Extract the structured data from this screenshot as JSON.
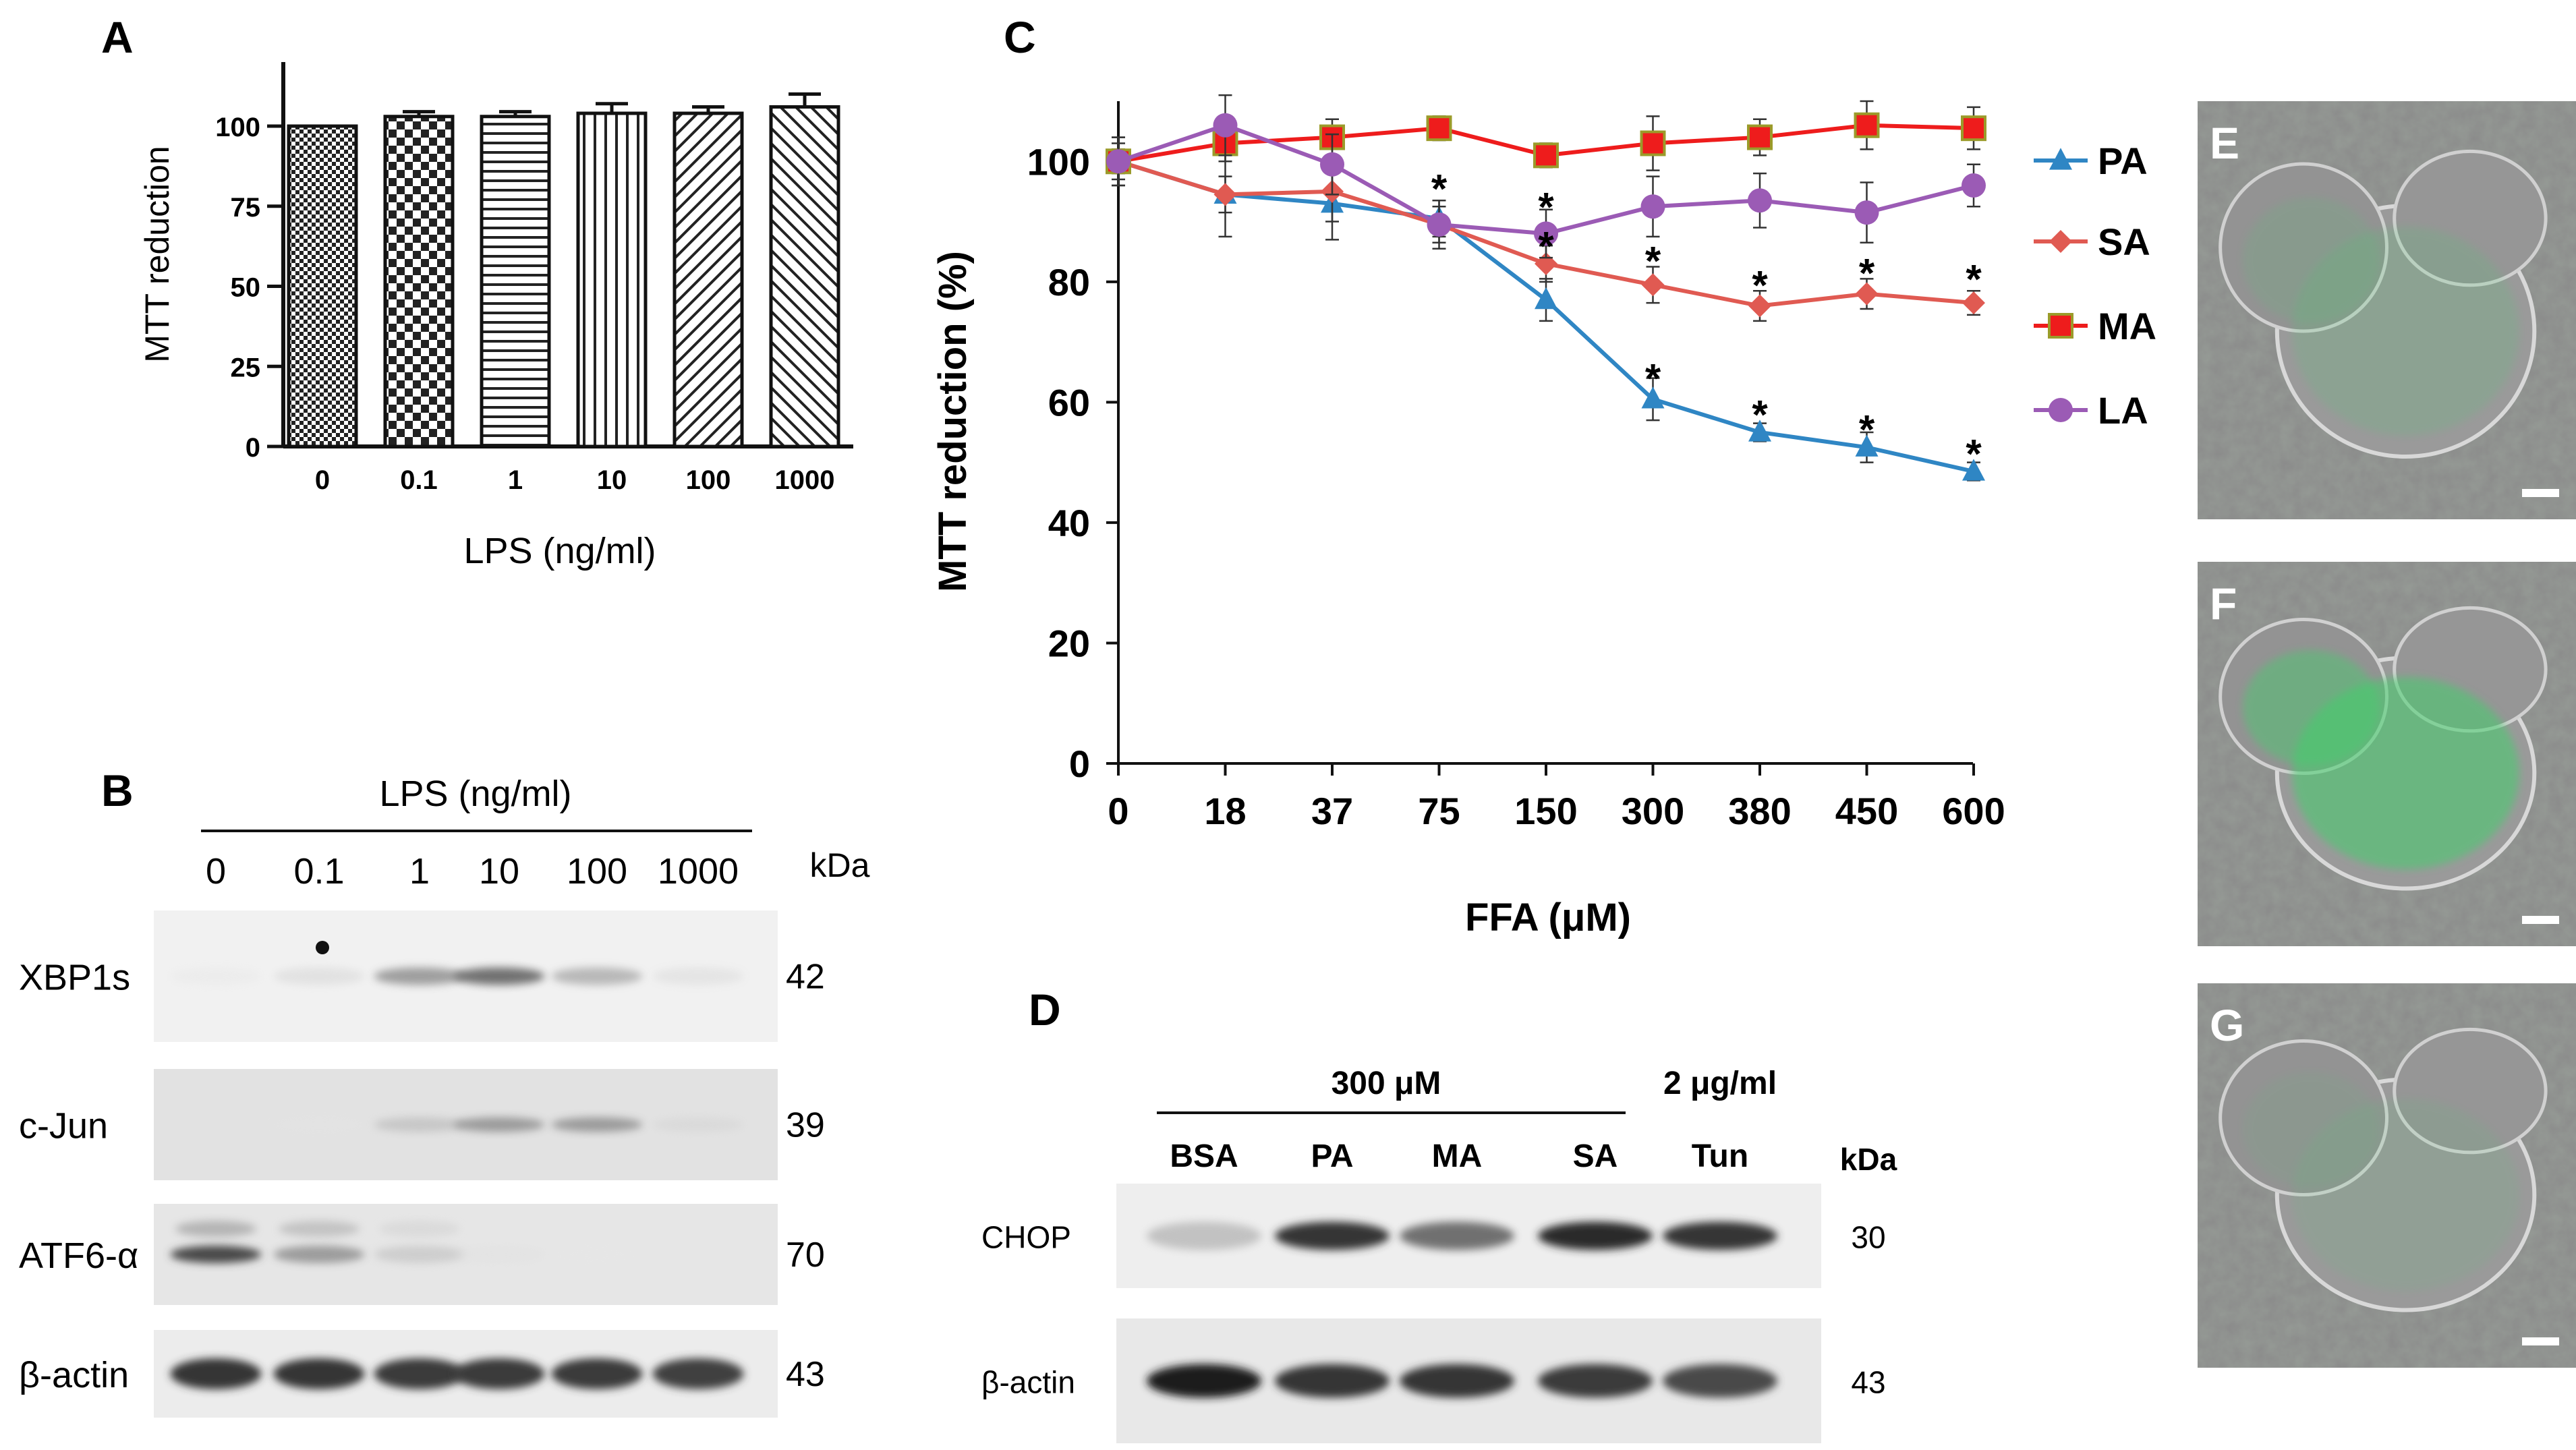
{
  "colors": {
    "PA": "#2f86c4",
    "SA": "#e05a52",
    "MA": "#ee1c1c",
    "MA_edge": "#9b9b2a",
    "LA": "#9b5bb5",
    "axis": "#111111",
    "fluor": "#3fd06a"
  },
  "panels": {
    "A": {
      "label": "A",
      "chart_data": {
        "type": "bar",
        "categories": [
          "0",
          "0.1",
          "1",
          "10",
          "100",
          "1000"
        ],
        "values": [
          100,
          103,
          103,
          104,
          104,
          106
        ],
        "errors": [
          0,
          1.5,
          1.5,
          3,
          2,
          4
        ],
        "patterns": [
          "fine-check",
          "check",
          "hstripe",
          "vstripe",
          "diag-right",
          "diag-left"
        ],
        "xlabel": "LPS (ng/ml)",
        "ylabel": "MTT reduction",
        "ylim": [
          0,
          120
        ],
        "yticks": [
          0,
          25,
          50,
          75,
          100
        ]
      }
    },
    "B": {
      "label": "B",
      "header": "LPS (ng/ml)",
      "lanes": [
        "0",
        "0.1",
        "1",
        "10",
        "100",
        "1000"
      ],
      "unit": "kDa",
      "rows": [
        {
          "name": "XBP1s",
          "kda": "42",
          "bands": [
            0.03,
            0.12,
            0.45,
            0.6,
            0.35,
            0.1
          ]
        },
        {
          "name": "c-Jun",
          "kda": "39",
          "bands": [
            0.0,
            0.03,
            0.25,
            0.45,
            0.45,
            0.12
          ]
        },
        {
          "name": "ATF6-α",
          "kda": "70",
          "bands": [
            0.75,
            0.45,
            0.22,
            0.05,
            0.02,
            0.0
          ]
        },
        {
          "name": "β-actin",
          "kda": "43",
          "bands": [
            0.85,
            0.85,
            0.82,
            0.82,
            0.82,
            0.8
          ]
        }
      ]
    },
    "C": {
      "label": "C",
      "chart_data": {
        "type": "line",
        "categories": [
          "0",
          "18",
          "37",
          "75",
          "150",
          "300",
          "380",
          "450",
          "600"
        ],
        "xlabel": "FFA (μM)",
        "ylabel": "MTT reduction (%)",
        "ylim": [
          0,
          110
        ],
        "yticks": [
          0,
          20,
          40,
          60,
          80,
          100
        ],
        "series": [
          {
            "name": "PA",
            "marker": "triangle",
            "values": [
              100,
              94.5,
              93,
              90.5,
              77,
              60.5,
              55,
              52.5,
              48.5
            ],
            "errors": [
              4,
              3,
              6,
              3,
              3.5,
              3.5,
              1.5,
              2.5,
              1.5
            ]
          },
          {
            "name": "SA",
            "marker": "diamond",
            "values": [
              100,
              94.5,
              95,
              89.5,
              83,
              79.5,
              76,
              78,
              76.5
            ],
            "errors": [
              4,
              7,
              5,
              3,
              3,
              3,
              2.5,
              2.5,
              2
            ]
          },
          {
            "name": "MA",
            "marker": "square",
            "values": [
              100,
              103,
              104,
              105.5,
              101,
              103,
              104,
              106,
              105.5
            ],
            "errors": [
              2,
              3,
              3,
              2,
              2,
              4.5,
              3,
              4,
              3.5
            ]
          },
          {
            "name": "LA",
            "marker": "circle",
            "values": [
              100,
              106,
              99.5,
              89.5,
              88,
              92.5,
              93.5,
              91.5,
              96
            ],
            "errors": [
              3,
              5,
              5,
              4,
              4,
              5,
              4.5,
              5,
              3.5
            ]
          }
        ],
        "significance": [
          {
            "x": "75",
            "y": 96.5
          },
          {
            "x": "150",
            "y": 93.5
          },
          {
            "x": "150",
            "y": 87
          },
          {
            "x": "300",
            "y": 84.5
          },
          {
            "x": "300",
            "y": 65
          },
          {
            "x": "380",
            "y": 80.5
          },
          {
            "x": "380",
            "y": 59
          },
          {
            "x": "450",
            "y": 82.5
          },
          {
            "x": "450",
            "y": 56.5
          },
          {
            "x": "600",
            "y": 81.5
          },
          {
            "x": "600",
            "y": 52.5
          }
        ],
        "marker_symbol": "*"
      }
    },
    "D": {
      "label": "D",
      "group1": "300 μM",
      "group2": "2 μg/ml",
      "lanes": [
        "BSA",
        "PA",
        "MA",
        "SA",
        "Tun"
      ],
      "unit": "kDa",
      "rows": [
        {
          "name": "CHOP",
          "kda": "30",
          "bands": [
            0.3,
            0.85,
            0.6,
            0.9,
            0.85
          ]
        },
        {
          "name": "β-actin",
          "kda": "43",
          "bands": [
            0.95,
            0.85,
            0.85,
            0.82,
            0.75
          ]
        }
      ]
    },
    "E": {
      "label": "E",
      "fluorescence": 0.2
    },
    "F": {
      "label": "F",
      "fluorescence": 0.7
    },
    "G": {
      "label": "G",
      "fluorescence": 0.12
    }
  }
}
